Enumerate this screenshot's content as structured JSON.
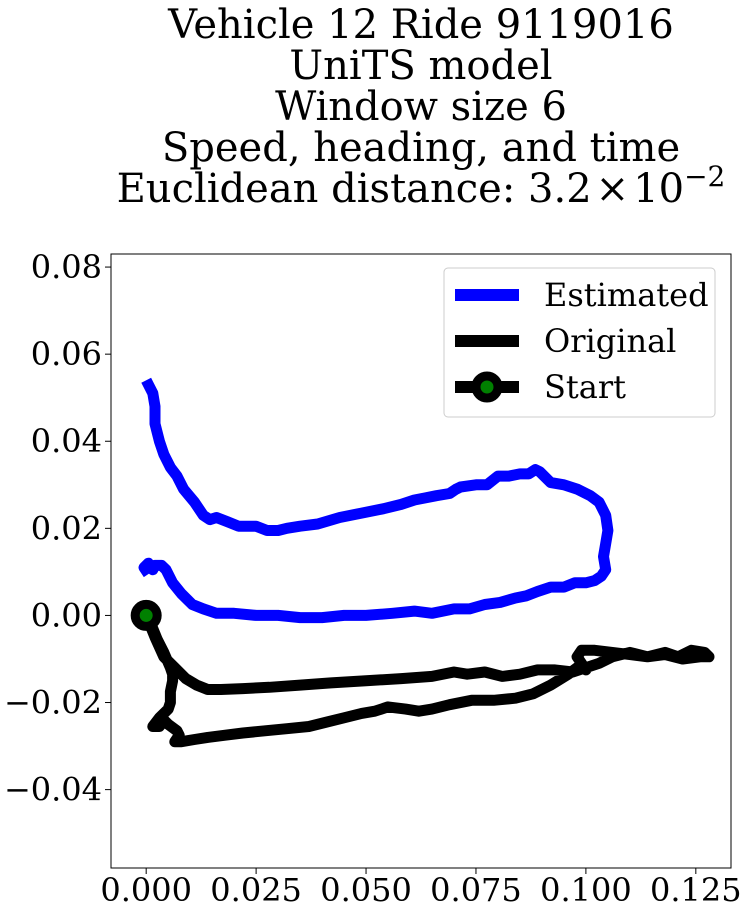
{
  "chart_data": {
    "type": "line",
    "title_lines": [
      "Vehicle 12 Ride 9119016",
      "UniTS model",
      "Window size 6",
      "Speed, heading, and time"
    ],
    "title_metric": {
      "prefix": "Euclidean distance: ",
      "mantissa": "3.2",
      "times": "×",
      "base": "10",
      "exponent": "−2"
    },
    "xlabel": "",
    "ylabel": "",
    "xlim": [
      -0.008,
      0.133
    ],
    "ylim": [
      -0.058,
      0.083
    ],
    "xticks": [
      0.0,
      0.025,
      0.05,
      0.075,
      0.1,
      0.125
    ],
    "xtick_labels": [
      "0.000",
      "0.025",
      "0.050",
      "0.075",
      "0.100",
      "0.125"
    ],
    "yticks": [
      0.08,
      0.06,
      0.04,
      0.02,
      0.0,
      -0.02,
      -0.04
    ],
    "ytick_labels": [
      "0.08",
      "0.06",
      "0.04",
      "0.02",
      "0.00",
      "−0.02",
      "−0.04"
    ],
    "grid": false,
    "legend_position": "top-right",
    "series": [
      {
        "name": "Estimated",
        "color": "#0000ff",
        "x": [
          0.0,
          0.0015,
          0.002,
          0.002,
          0.003,
          0.004,
          0.0055,
          0.007,
          0.0085,
          0.011,
          0.013,
          0.0145,
          0.016,
          0.0185,
          0.021,
          0.023,
          0.025,
          0.0275,
          0.03,
          0.032,
          0.035,
          0.039,
          0.044,
          0.049,
          0.054,
          0.058,
          0.061,
          0.0635,
          0.066,
          0.069,
          0.0705,
          0.0715,
          0.075,
          0.0775,
          0.08,
          0.0825,
          0.085,
          0.087,
          0.0885,
          0.0895,
          0.092,
          0.095,
          0.098,
          0.101,
          0.103,
          0.1045,
          0.105,
          0.1045,
          0.104,
          0.1045,
          0.1035,
          0.102,
          0.1,
          0.0975,
          0.095,
          0.092,
          0.089,
          0.0865,
          0.084,
          0.0805,
          0.077,
          0.0735,
          0.07,
          0.065,
          0.061,
          0.056,
          0.05,
          0.045,
          0.04,
          0.035,
          0.03,
          0.025,
          0.02,
          0.016,
          0.013,
          0.0105,
          0.008,
          0.006,
          0.0045,
          0.0035,
          0.002,
          0.0015,
          0.0005,
          -0.0005,
          0.0005
        ],
        "y": [
          0.054,
          0.051,
          0.048,
          0.044,
          0.04,
          0.037,
          0.034,
          0.032,
          0.029,
          0.026,
          0.023,
          0.022,
          0.0225,
          0.0215,
          0.0205,
          0.0205,
          0.0205,
          0.0195,
          0.0195,
          0.02,
          0.0205,
          0.021,
          0.0225,
          0.0235,
          0.0245,
          0.0255,
          0.0265,
          0.027,
          0.0275,
          0.028,
          0.029,
          0.0295,
          0.03,
          0.03,
          0.032,
          0.032,
          0.0325,
          0.0325,
          0.0335,
          0.033,
          0.0305,
          0.03,
          0.029,
          0.0275,
          0.026,
          0.023,
          0.0195,
          0.0165,
          0.0135,
          0.0105,
          0.009,
          0.008,
          0.0075,
          0.0075,
          0.0065,
          0.0065,
          0.0055,
          0.0045,
          0.004,
          0.003,
          0.0025,
          0.0015,
          0.0015,
          0.0005,
          0.001,
          0.0005,
          0.0,
          0.0,
          -0.0005,
          -0.0005,
          0.0,
          0.0,
          0.0005,
          0.0005,
          0.0015,
          0.0025,
          0.005,
          0.0075,
          0.0105,
          0.0115,
          0.0115,
          0.0105,
          0.012,
          0.011,
          0.0095
        ]
      },
      {
        "name": "Original",
        "color": "#000000",
        "x": [
          0.0,
          0.002,
          0.004,
          0.0065,
          0.009,
          0.0115,
          0.014,
          0.017,
          0.022,
          0.028,
          0.035,
          0.042,
          0.05,
          0.058,
          0.065,
          0.07,
          0.073,
          0.077,
          0.081,
          0.085,
          0.089,
          0.093,
          0.097,
          0.1,
          0.103,
          0.106,
          0.11,
          0.114,
          0.118,
          0.121,
          0.124,
          0.127,
          0.128,
          0.126,
          0.122,
          0.118,
          0.114,
          0.11,
          0.106,
          0.102,
          0.099,
          0.098,
          0.099,
          0.1,
          0.099,
          0.098,
          0.096,
          0.092,
          0.088,
          0.084,
          0.079,
          0.074,
          0.069,
          0.065,
          0.062,
          0.059,
          0.055,
          0.052,
          0.049,
          0.045,
          0.041,
          0.037,
          0.032,
          0.027,
          0.022,
          0.018,
          0.014,
          0.011,
          0.008,
          0.0065,
          0.0075,
          0.007,
          0.005,
          0.004,
          0.003,
          0.0015,
          0.003,
          0.005,
          0.0055,
          0.0055,
          0.006,
          0.006,
          0.0055,
          0.004,
          0.0025,
          0.0015,
          0.0005
        ],
        "y": [
          0.0,
          -0.005,
          -0.0095,
          -0.012,
          -0.0145,
          -0.016,
          -0.017,
          -0.017,
          -0.0168,
          -0.0165,
          -0.016,
          -0.0155,
          -0.015,
          -0.0145,
          -0.014,
          -0.013,
          -0.0135,
          -0.013,
          -0.014,
          -0.0135,
          -0.0125,
          -0.0125,
          -0.013,
          -0.012,
          -0.011,
          -0.0095,
          -0.0085,
          -0.0095,
          -0.0085,
          -0.0095,
          -0.008,
          -0.0085,
          -0.0095,
          -0.0095,
          -0.01,
          -0.009,
          -0.0095,
          -0.009,
          -0.0085,
          -0.008,
          -0.008,
          -0.0095,
          -0.011,
          -0.0125,
          -0.0115,
          -0.012,
          -0.0135,
          -0.016,
          -0.018,
          -0.019,
          -0.0195,
          -0.0195,
          -0.0205,
          -0.0215,
          -0.022,
          -0.0215,
          -0.021,
          -0.022,
          -0.0225,
          -0.0235,
          -0.0245,
          -0.0255,
          -0.026,
          -0.0265,
          -0.027,
          -0.0275,
          -0.028,
          -0.0285,
          -0.029,
          -0.029,
          -0.0275,
          -0.0265,
          -0.025,
          -0.024,
          -0.0255,
          -0.0255,
          -0.0235,
          -0.0215,
          -0.02,
          -0.0175,
          -0.015,
          -0.0135,
          -0.012,
          -0.0085,
          -0.0055,
          -0.003,
          -0.001
        ]
      }
    ],
    "marker": {
      "name": "Start",
      "x": 0.0,
      "y": 0.0,
      "face_color": "#008000",
      "edge_color": "#000000"
    },
    "legend": {
      "entries": [
        "Estimated",
        "Original",
        "Start"
      ]
    }
  }
}
